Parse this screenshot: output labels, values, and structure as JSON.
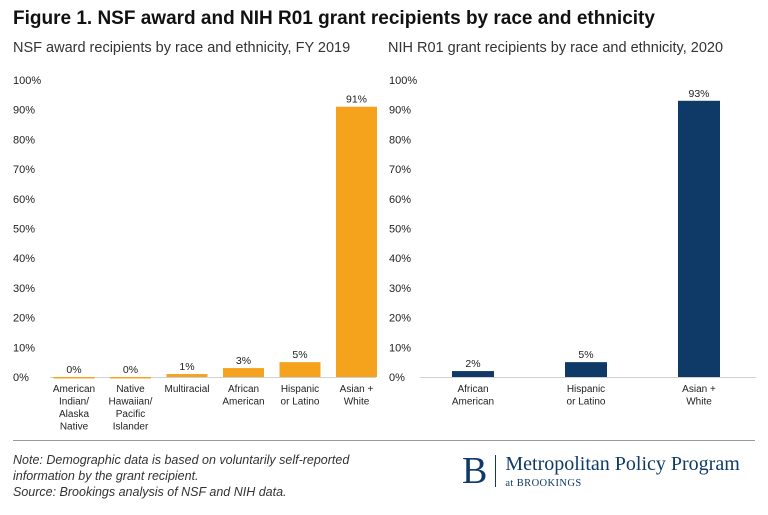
{
  "figure_title": "Figure 1. NSF award and NIH R01 grant recipients by race and ethnicity",
  "chart_data": [
    {
      "type": "bar",
      "title": "NSF award recipients by race and ethnicity, FY 2019",
      "categories": [
        [
          "American",
          "Indian/",
          "Alaska",
          "Native"
        ],
        [
          "Native",
          "Hawaiian/",
          "Pacific",
          "Islander"
        ],
        [
          "Multiracial"
        ],
        [
          "African",
          "American"
        ],
        [
          "Hispanic",
          "or Latino"
        ],
        [
          "Asian +",
          "White"
        ]
      ],
      "values": [
        0,
        0,
        1,
        3,
        5,
        91
      ],
      "data_labels": [
        "0%",
        "0%",
        "1%",
        "3%",
        "5%",
        "91%"
      ],
      "y_ticks": [
        "0%",
        "10%",
        "20%",
        "30%",
        "40%",
        "50%",
        "60%",
        "70%",
        "80%",
        "90%",
        "100%"
      ],
      "ylim": [
        0,
        100
      ],
      "color": "#f5a31d"
    },
    {
      "type": "bar",
      "title": "NIH R01 grant recipients by race and ethnicity, 2020",
      "categories": [
        [
          "African",
          "American"
        ],
        [
          "Hispanic",
          "or Latino"
        ],
        [
          "Asian +",
          "White"
        ]
      ],
      "values": [
        2,
        5,
        93
      ],
      "data_labels": [
        "2%",
        "5%",
        "93%"
      ],
      "y_ticks": [
        "0%",
        "10%",
        "20%",
        "30%",
        "40%",
        "50%",
        "60%",
        "70%",
        "80%",
        "90%",
        "100%"
      ],
      "ylim": [
        0,
        100
      ],
      "color": "#0f3a68"
    }
  ],
  "note": {
    "line1": "Note: Demographic data is based on voluntarily self-reported",
    "line2": "information by the grant recipient.",
    "line3": "Source: Brookings analysis of NSF and NIH data."
  },
  "logo": {
    "mark": "B",
    "name": "Metropolitan Policy Program",
    "sub": "at BROOKINGS"
  }
}
